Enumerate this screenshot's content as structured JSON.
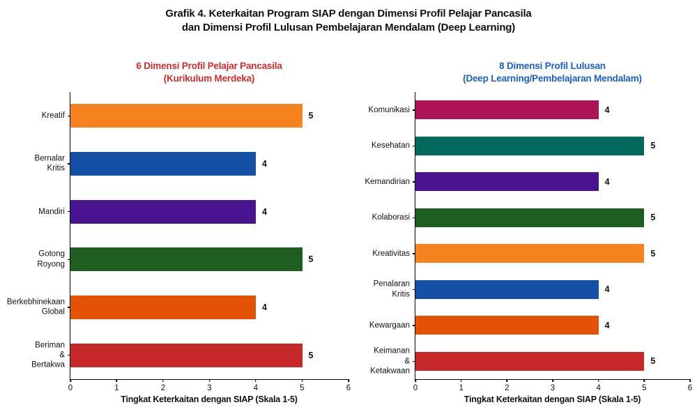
{
  "figure_title": {
    "line1": "Grafik 4. Keterkaitan Program SIAP dengan Dimensi Profil Pelajar Pancasila",
    "line2": "dan Dimensi Profil Lulusan Pembelajaran Mendalam (Deep Learning)"
  },
  "chart_data": [
    {
      "type": "bar",
      "orientation": "horizontal",
      "title_lines": [
        "6 Dimensi Profil Pelajar Pancasila",
        "(Kurikulum Merdeka)"
      ],
      "title_color": "#D02B2B",
      "categories": [
        "Kreatif",
        "Bernalar\nKritis",
        "Mandiri",
        "Gotong\nRoyong",
        "Berkebhinekaan\nGlobal",
        "Beriman &\nBertakwa"
      ],
      "values": [
        5,
        4,
        4,
        5,
        4,
        5
      ],
      "bar_colors": [
        "#F5821F",
        "#1450A5",
        "#4A1490",
        "#1F5E21",
        "#E35205",
        "#C62829"
      ],
      "xlabel": "Tingkat Keterkaitan dengan SIAP (Skala 1-5)",
      "xlim": [
        0,
        6
      ],
      "xticks": [
        0,
        1,
        2,
        3,
        4,
        5,
        6
      ],
      "grid": false,
      "legend": null,
      "bar_thickness_px": 34
    },
    {
      "type": "bar",
      "orientation": "horizontal",
      "title_lines": [
        "8 Dimensi Profil Lulusan",
        "(Deep Learning/Pembelajaran Mendalam)"
      ],
      "title_color": "#1960C8",
      "categories": [
        "Komunikasi",
        "Kesehatan",
        "Kemandirian",
        "Kolaborasi",
        "Kreativitas",
        "Penalaran\nKritis",
        "Kewargaan",
        "Keimanan &\nKetakwaan"
      ],
      "values": [
        4,
        5,
        4,
        5,
        5,
        4,
        4,
        5
      ],
      "bar_colors": [
        "#AD1457",
        "#00695C",
        "#4A1490",
        "#1F5E21",
        "#F5821F",
        "#1450A5",
        "#E35205",
        "#C62829"
      ],
      "xlabel": "Tingkat Keterkaitan dengan SIAP (Skala 1-5)",
      "xlim": [
        0,
        6
      ],
      "xticks": [
        0,
        1,
        2,
        3,
        4,
        5,
        6
      ],
      "grid": false,
      "legend": null,
      "bar_thickness_px": 27
    }
  ]
}
